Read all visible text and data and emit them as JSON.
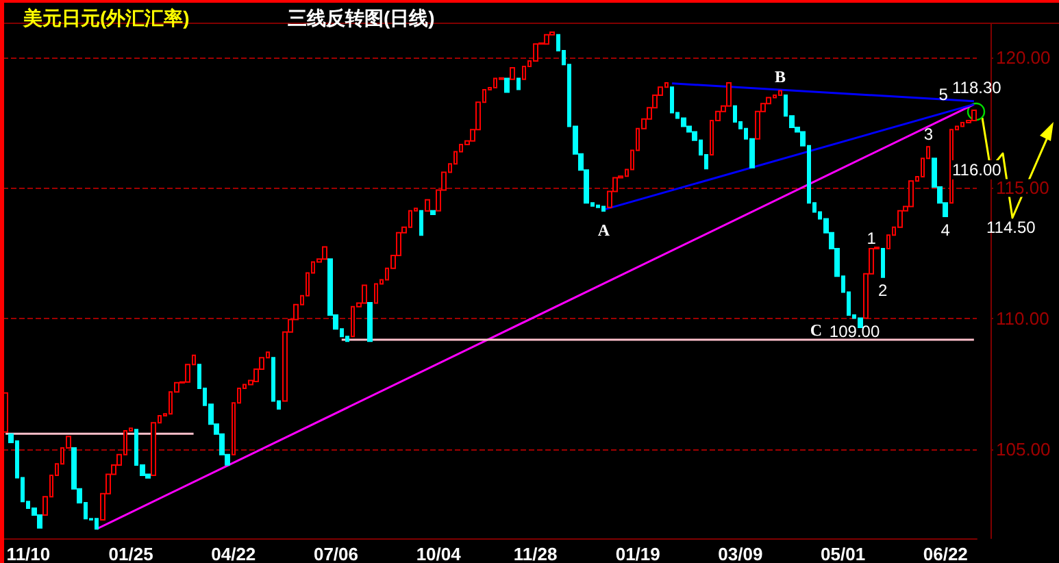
{
  "chart_data": {
    "type": "candlestick",
    "title": "美元日元(外汇汇率)",
    "subtitle": "三线反转图(日线)",
    "categories": [
      null,
      null,
      null,
      null,
      "11/10",
      null,
      null,
      null,
      null,
      null,
      null,
      null,
      null,
      null,
      null,
      null,
      null,
      null,
      null,
      null,
      null,
      null,
      "01/25",
      null,
      null,
      null,
      null,
      null,
      null,
      null,
      null,
      null,
      null,
      null,
      null,
      null,
      null,
      null,
      null,
      null,
      "04/22",
      null,
      null,
      null,
      null,
      null,
      null,
      null,
      null,
      null,
      null,
      null,
      null,
      null,
      null,
      null,
      null,
      null,
      "07/06",
      null,
      null,
      null,
      null,
      null,
      null,
      null,
      null,
      null,
      null,
      null,
      null,
      null,
      null,
      null,
      null,
      null,
      "10/04",
      null,
      null,
      null,
      null,
      null,
      null,
      null,
      null,
      null,
      null,
      null,
      null,
      null,
      null,
      null,
      null,
      "11/28",
      null,
      null,
      null,
      null,
      null,
      null,
      null,
      null,
      null,
      null,
      null,
      null,
      null,
      null,
      null,
      null,
      null,
      "01/19",
      null,
      null,
      null,
      null,
      null,
      null,
      null,
      null,
      null,
      null,
      null,
      null,
      null,
      null,
      null,
      null,
      null,
      "03/09",
      null,
      null,
      null,
      null,
      null,
      null,
      null,
      null,
      null,
      null,
      null,
      null,
      null,
      null,
      null,
      null,
      null,
      "05/01",
      null,
      null,
      null,
      null,
      null,
      null,
      null,
      null,
      null,
      null,
      null,
      null,
      null,
      null,
      null,
      null,
      null,
      "06/22",
      null,
      null,
      null,
      null,
      null
    ],
    "ylim": [
      101.6,
      121.3
    ],
    "yticks": [
      {
        "value": 105,
        "label": "105.00"
      },
      {
        "value": 110,
        "label": "110.00"
      },
      {
        "value": 115,
        "label": "115.00"
      },
      {
        "value": 120,
        "label": "120.00"
      }
    ],
    "grid": "y",
    "annotations": [
      "A",
      "B",
      "C",
      "109.00",
      "1",
      "2",
      "3",
      "4",
      "5",
      "118.30",
      "116.00",
      "114.50"
    ],
    "series": [
      {
        "type": "candlestick",
        "ohlc": [
          [
            105.67,
            107.16,
            105.67,
            107.16
          ],
          [
            105.59,
            105.59,
            105.27,
            105.27
          ],
          [
            105.32,
            105.32,
            103.92,
            103.92
          ],
          [
            103.92,
            103.92,
            103.01,
            103.01
          ],
          [
            103.01,
            103.01,
            102.75,
            102.75
          ],
          [
            102.75,
            102.75,
            102.49,
            102.49
          ],
          [
            102.49,
            102.49,
            102.0,
            102.0
          ],
          [
            102.49,
            103.19,
            102.49,
            103.19
          ],
          [
            103.19,
            104.01,
            103.19,
            104.01
          ],
          [
            104.01,
            104.45,
            104.01,
            104.45
          ],
          [
            104.45,
            105.06,
            104.45,
            105.06
          ],
          [
            105.06,
            105.5,
            105.06,
            105.5
          ],
          [
            105.06,
            105.06,
            103.49,
            103.49
          ],
          [
            103.49,
            103.49,
            102.96,
            102.96
          ],
          [
            102.96,
            102.96,
            102.35,
            102.35
          ],
          [
            102.35,
            102.35,
            102.31,
            102.31
          ],
          [
            102.35,
            102.35,
            101.96,
            101.96
          ],
          [
            102.31,
            103.31,
            102.31,
            103.31
          ],
          [
            103.31,
            104.05,
            103.31,
            104.05
          ],
          [
            104.05,
            104.4,
            104.05,
            104.4
          ],
          [
            104.4,
            104.8,
            104.4,
            104.8
          ],
          [
            104.8,
            105.71,
            104.8,
            105.71
          ],
          [
            105.71,
            105.81,
            105.71,
            105.81
          ],
          [
            105.76,
            105.76,
            104.4,
            104.4
          ],
          [
            104.4,
            104.4,
            104.01,
            104.01
          ],
          [
            104.05,
            104.05,
            103.91,
            103.91
          ],
          [
            104.01,
            106.02,
            104.01,
            106.02
          ],
          [
            106.02,
            106.29,
            106.02,
            106.29
          ],
          [
            106.29,
            106.36,
            106.29,
            106.36
          ],
          [
            106.36,
            107.2,
            106.36,
            107.2
          ],
          [
            107.2,
            107.55,
            107.2,
            107.55
          ],
          [
            107.55,
            107.58,
            107.55,
            107.58
          ],
          [
            107.58,
            108.25,
            107.58,
            108.25
          ],
          [
            108.25,
            108.6,
            108.25,
            108.6
          ],
          [
            108.25,
            108.25,
            107.34,
            107.34
          ],
          [
            107.34,
            107.34,
            106.69,
            106.69
          ],
          [
            106.73,
            106.73,
            105.97,
            105.97
          ],
          [
            105.97,
            105.97,
            105.59,
            105.59
          ],
          [
            105.59,
            105.59,
            104.8,
            104.8
          ],
          [
            104.8,
            104.8,
            104.41,
            104.41
          ],
          [
            104.8,
            106.78,
            104.8,
            106.78
          ],
          [
            106.78,
            107.34,
            106.78,
            107.34
          ],
          [
            107.34,
            107.48,
            107.34,
            107.48
          ],
          [
            107.48,
            107.64,
            107.48,
            107.64
          ],
          [
            107.6,
            108.07,
            107.6,
            108.07
          ],
          [
            108.07,
            108.51,
            108.07,
            108.51
          ],
          [
            108.51,
            108.72,
            108.51,
            108.72
          ],
          [
            108.51,
            108.51,
            106.85,
            106.85
          ],
          [
            106.85,
            106.85,
            106.55,
            106.55
          ],
          [
            106.85,
            109.49,
            106.85,
            109.49
          ],
          [
            109.49,
            109.97,
            109.49,
            109.97
          ],
          [
            109.97,
            110.54,
            109.97,
            110.54
          ],
          [
            110.54,
            110.88,
            110.54,
            110.88
          ],
          [
            110.88,
            111.75,
            110.88,
            111.75
          ],
          [
            111.75,
            112.17,
            111.75,
            112.17
          ],
          [
            112.17,
            112.28,
            112.17,
            112.28
          ],
          [
            112.28,
            112.75,
            112.28,
            112.75
          ],
          [
            112.28,
            112.28,
            110.14,
            110.14
          ],
          [
            110.14,
            110.14,
            109.61,
            109.61
          ],
          [
            109.61,
            109.61,
            109.32,
            109.32
          ],
          [
            109.32,
            109.32,
            109.14,
            109.14
          ],
          [
            109.32,
            110.46,
            109.32,
            110.46
          ],
          [
            110.46,
            110.6,
            110.46,
            110.6
          ],
          [
            110.6,
            111.28,
            110.6,
            111.28
          ],
          [
            110.61,
            110.61,
            109.14,
            109.14
          ],
          [
            110.6,
            111.33,
            110.6,
            111.33
          ],
          [
            111.33,
            111.49,
            111.33,
            111.49
          ],
          [
            111.49,
            111.93,
            111.49,
            111.93
          ],
          [
            111.93,
            112.42,
            111.93,
            112.42
          ],
          [
            112.42,
            113.29,
            112.42,
            113.29
          ],
          [
            113.29,
            113.5,
            113.29,
            113.5
          ],
          [
            113.5,
            114.13,
            113.5,
            114.13
          ],
          [
            114.13,
            114.22,
            114.13,
            114.22
          ],
          [
            114.13,
            114.13,
            113.2,
            113.2
          ],
          [
            114.12,
            114.55,
            114.12,
            114.55
          ],
          [
            114.13,
            114.13,
            113.99,
            113.99
          ],
          [
            114.13,
            114.92,
            114.13,
            114.92
          ],
          [
            114.92,
            115.6,
            114.92,
            115.6
          ],
          [
            115.6,
            115.92,
            115.6,
            115.92
          ],
          [
            115.92,
            116.39,
            115.92,
            116.39
          ],
          [
            116.39,
            116.66,
            116.39,
            116.66
          ],
          [
            116.66,
            116.8,
            116.66,
            116.8
          ],
          [
            116.8,
            117.23,
            116.8,
            117.23
          ],
          [
            117.23,
            118.28,
            117.23,
            118.28
          ],
          [
            118.28,
            118.76,
            118.28,
            118.76
          ],
          [
            118.76,
            118.84,
            118.76,
            118.84
          ],
          [
            118.84,
            119.19,
            118.84,
            119.19
          ],
          [
            119.16,
            119.21,
            119.16,
            119.21
          ],
          [
            119.19,
            119.19,
            118.67,
            118.67
          ],
          [
            119.16,
            119.6,
            119.16,
            119.6
          ],
          [
            119.19,
            119.19,
            118.77,
            118.77
          ],
          [
            119.16,
            119.65,
            119.16,
            119.65
          ],
          [
            119.65,
            119.86,
            119.65,
            119.86
          ],
          [
            119.86,
            120.51,
            119.86,
            120.51
          ],
          [
            120.51,
            120.54,
            120.51,
            120.54
          ],
          [
            120.51,
            120.86,
            120.51,
            120.86
          ],
          [
            120.86,
            120.96,
            120.86,
            120.96
          ],
          [
            120.86,
            120.86,
            120.25,
            120.25
          ],
          [
            120.25,
            120.25,
            119.72,
            119.72
          ],
          [
            119.72,
            119.72,
            117.36,
            117.36
          ],
          [
            117.36,
            117.36,
            116.3,
            116.3
          ],
          [
            116.3,
            116.3,
            115.69,
            115.69
          ],
          [
            115.69,
            115.69,
            114.43,
            114.43
          ],
          [
            114.43,
            114.43,
            114.31,
            114.31
          ],
          [
            114.34,
            114.34,
            114.26,
            114.26
          ],
          [
            114.29,
            114.29,
            114.12,
            114.12
          ],
          [
            114.26,
            114.87,
            114.26,
            114.87
          ],
          [
            114.87,
            115.39,
            114.87,
            115.39
          ],
          [
            115.39,
            115.45,
            115.39,
            115.45
          ],
          [
            115.45,
            115.71,
            115.45,
            115.71
          ],
          [
            115.71,
            116.44,
            115.71,
            116.44
          ],
          [
            116.44,
            117.27,
            116.44,
            117.27
          ],
          [
            117.27,
            117.64,
            117.27,
            117.64
          ],
          [
            117.64,
            118.07,
            117.64,
            118.07
          ],
          [
            118.07,
            118.55,
            118.07,
            118.55
          ],
          [
            118.55,
            118.86,
            118.55,
            118.86
          ],
          [
            118.86,
            119.02,
            118.86,
            119.02
          ],
          [
            118.86,
            118.86,
            117.88,
            117.88
          ],
          [
            117.88,
            117.88,
            117.67,
            117.67
          ],
          [
            117.67,
            117.67,
            117.36,
            117.36
          ],
          [
            117.36,
            117.36,
            117.15,
            117.15
          ],
          [
            117.15,
            117.15,
            116.83,
            116.83
          ],
          [
            116.83,
            116.83,
            116.27,
            116.27
          ],
          [
            116.27,
            116.27,
            115.74,
            115.74
          ],
          [
            116.27,
            117.58,
            116.27,
            117.58
          ],
          [
            117.58,
            117.93,
            117.58,
            117.93
          ],
          [
            117.93,
            118.14,
            117.93,
            118.14
          ],
          [
            118.14,
            119.02,
            118.14,
            119.02
          ],
          [
            118.14,
            118.14,
            117.53,
            117.53
          ],
          [
            117.53,
            117.53,
            117.27,
            117.27
          ],
          [
            117.27,
            117.27,
            116.88,
            116.88
          ],
          [
            116.88,
            116.88,
            115.78,
            115.78
          ],
          [
            116.88,
            117.93,
            116.88,
            117.93
          ],
          [
            117.93,
            118.23,
            117.93,
            118.23
          ],
          [
            118.23,
            118.46,
            118.23,
            118.46
          ],
          [
            118.46,
            118.55,
            118.46,
            118.55
          ],
          [
            118.55,
            118.72,
            118.55,
            118.72
          ],
          [
            118.55,
            118.55,
            117.76,
            117.76
          ],
          [
            117.76,
            117.76,
            117.32,
            117.32
          ],
          [
            117.32,
            117.32,
            117.15,
            117.15
          ],
          [
            117.15,
            117.15,
            116.62,
            116.62
          ],
          [
            116.62,
            116.62,
            114.43,
            114.43
          ],
          [
            114.43,
            114.43,
            114.08,
            114.08
          ],
          [
            114.08,
            114.08,
            113.82,
            113.82
          ],
          [
            113.82,
            113.82,
            113.29,
            113.29
          ],
          [
            113.29,
            113.29,
            112.68,
            112.68
          ],
          [
            112.68,
            112.68,
            111.63,
            111.63
          ],
          [
            111.63,
            111.63,
            111.02,
            111.02
          ],
          [
            111.02,
            111.02,
            110.14,
            110.14
          ],
          [
            110.14,
            110.14,
            110.02,
            110.02
          ],
          [
            110.02,
            110.02,
            109.67,
            109.67
          ],
          [
            110.02,
            111.72,
            110.02,
            111.72
          ],
          [
            111.72,
            112.68,
            111.72,
            112.68
          ],
          [
            112.68,
            112.73,
            112.68,
            112.73
          ],
          [
            112.68,
            112.68,
            111.59,
            111.59
          ],
          [
            112.68,
            113.2,
            112.68,
            113.2
          ],
          [
            113.2,
            113.5,
            113.2,
            113.5
          ],
          [
            113.5,
            114.13,
            113.5,
            114.13
          ],
          [
            114.13,
            114.29,
            114.13,
            114.29
          ],
          [
            114.29,
            115.27,
            114.29,
            115.27
          ],
          [
            115.27,
            115.43,
            115.27,
            115.43
          ],
          [
            115.43,
            116.13,
            115.43,
            116.13
          ],
          [
            116.13,
            116.58,
            116.13,
            116.58
          ],
          [
            116.13,
            116.13,
            115.04,
            115.04
          ],
          [
            115.04,
            115.04,
            114.43,
            114.43
          ],
          [
            114.43,
            114.43,
            113.91,
            113.91
          ],
          [
            114.43,
            117.23,
            114.43,
            117.23
          ],
          [
            117.23,
            117.36,
            117.23,
            117.36
          ],
          [
            117.36,
            117.5,
            117.36,
            117.5
          ],
          [
            117.5,
            117.58,
            117.5,
            117.58
          ],
          [
            117.58,
            117.97,
            117.58,
            117.97
          ]
        ],
        "colors": [
          "#ff0000",
          "#00ffff",
          "#00ffff",
          "#00ffff",
          "#00ffff",
          "#00ffff",
          "#00ffff",
          "#ff0000",
          "#ff0000",
          "#ff0000",
          "#ff0000",
          "#ff0000",
          "#00ffff",
          "#00ffff",
          "#00ffff",
          "#00ffff",
          "#00ffff",
          "#ff0000",
          "#ff0000",
          "#ff0000",
          "#ff0000",
          "#ff0000",
          "#ff0000",
          "#00ffff",
          "#00ffff",
          "#00ffff",
          "#ff0000",
          "#ff0000",
          "#ff0000",
          "#ff0000",
          "#ff0000",
          "#ff0000",
          "#ff0000",
          "#ff0000",
          "#00ffff",
          "#00ffff",
          "#00ffff",
          "#00ffff",
          "#00ffff",
          "#00ffff",
          "#ff0000",
          "#ff0000",
          "#ff0000",
          "#ff0000",
          "#ff0000",
          "#ff0000",
          "#ff0000",
          "#00ffff",
          "#00ffff",
          "#ff0000",
          "#ff0000",
          "#ff0000",
          "#ff0000",
          "#ff0000",
          "#ff0000",
          "#ff0000",
          "#ff0000",
          "#00ffff",
          "#00ffff",
          "#00ffff",
          "#00ffff",
          "#ff0000",
          "#ff0000",
          "#ff0000",
          "#00ffff",
          "#ff0000",
          "#ff0000",
          "#ff0000",
          "#ff0000",
          "#ff0000",
          "#ff0000",
          "#ff0000",
          "#ff0000",
          "#00ffff",
          "#ff0000",
          "#00ffff",
          "#ff0000",
          "#ff0000",
          "#ff0000",
          "#ff0000",
          "#ff0000",
          "#ff0000",
          "#ff0000",
          "#ff0000",
          "#ff0000",
          "#ff0000",
          "#ff0000",
          "#ff0000",
          "#00ffff",
          "#ff0000",
          "#00ffff",
          "#ff0000",
          "#ff0000",
          "#ff0000",
          "#ff0000",
          "#ff0000",
          "#ff0000",
          "#00ffff",
          "#00ffff",
          "#00ffff",
          "#00ffff",
          "#00ffff",
          "#00ffff",
          "#00ffff",
          "#00ffff",
          "#00ffff",
          "#ff0000",
          "#ff0000",
          "#ff0000",
          "#ff0000",
          "#ff0000",
          "#ff0000",
          "#ff0000",
          "#ff0000",
          "#ff0000",
          "#ff0000",
          "#ff0000",
          "#00ffff",
          "#00ffff",
          "#00ffff",
          "#00ffff",
          "#00ffff",
          "#00ffff",
          "#00ffff",
          "#ff0000",
          "#ff0000",
          "#ff0000",
          "#ff0000",
          "#00ffff",
          "#00ffff",
          "#00ffff",
          "#00ffff",
          "#ff0000",
          "#ff0000",
          "#ff0000",
          "#ff0000",
          "#ff0000",
          "#00ffff",
          "#00ffff",
          "#00ffff",
          "#00ffff",
          "#00ffff",
          "#00ffff",
          "#00ffff",
          "#00ffff",
          "#00ffff",
          "#00ffff",
          "#00ffff",
          "#00ffff",
          "#00ffff",
          "#00ffff",
          "#ff0000",
          "#ff0000",
          "#ff0000",
          "#00ffff",
          "#ff0000",
          "#ff0000",
          "#ff0000",
          "#ff0000",
          "#ff0000",
          "#ff0000",
          "#ff0000",
          "#ff0000",
          "#00ffff",
          "#00ffff",
          "#00ffff",
          "#ff0000",
          "#ff0000",
          "#ff0000",
          "#ff0000",
          "#ff0000"
        ]
      },
      {
        "type": "line",
        "color": "#ff00ff",
        "values": [
          null,
          null,
          null,
          null,
          null,
          null,
          null,
          null,
          null,
          null,
          null,
          null,
          null,
          null,
          null,
          null,
          101.96,
          null,
          null,
          null,
          null,
          null,
          null,
          null,
          null,
          null,
          null,
          null,
          null,
          null,
          null,
          null,
          null,
          null,
          null,
          null,
          null,
          null,
          null,
          null,
          null,
          null,
          null,
          null,
          null,
          null,
          null,
          null,
          null,
          null,
          null,
          null,
          null,
          null,
          null,
          null,
          null,
          null,
          null,
          null,
          null,
          null,
          null,
          null,
          null,
          null,
          null,
          null,
          null,
          null,
          null,
          null,
          null,
          null,
          null,
          null,
          null,
          null,
          null,
          null,
          null,
          null,
          null,
          null,
          null,
          null,
          null,
          null,
          null,
          null,
          null,
          null,
          null,
          null,
          null,
          null,
          null,
          null,
          null,
          null,
          null,
          null,
          null,
          null,
          null,
          null,
          null,
          null,
          null,
          null,
          null,
          null,
          null,
          null,
          null,
          null,
          null,
          null,
          null,
          null,
          null,
          null,
          null,
          null,
          null,
          null,
          null,
          null,
          null,
          null,
          null,
          null,
          null,
          null,
          null,
          null,
          null,
          null,
          null,
          null,
          null,
          null,
          null,
          null,
          null,
          null,
          null,
          null,
          null,
          null,
          null,
          null,
          null,
          null,
          null,
          null,
          null,
          null,
          null,
          null,
          null,
          null,
          null,
          null,
          null,
          null,
          null,
          null,
          null,
          null,
          118.2
        ]
      },
      {
        "type": "line",
        "color": "#0000ff",
        "values": [
          null,
          null,
          null,
          null,
          null,
          null,
          null,
          null,
          null,
          null,
          null,
          null,
          null,
          null,
          null,
          null,
          null,
          null,
          null,
          null,
          null,
          null,
          null,
          null,
          null,
          null,
          null,
          null,
          null,
          null,
          null,
          null,
          null,
          null,
          null,
          null,
          null,
          null,
          null,
          null,
          null,
          null,
          null,
          null,
          null,
          null,
          null,
          null,
          null,
          null,
          null,
          null,
          null,
          null,
          null,
          null,
          null,
          null,
          null,
          null,
          null,
          null,
          null,
          null,
          null,
          null,
          null,
          null,
          null,
          null,
          null,
          null,
          null,
          null,
          null,
          null,
          null,
          null,
          null,
          null,
          null,
          null,
          null,
          null,
          null,
          null,
          null,
          null,
          null,
          null,
          null,
          null,
          null,
          null,
          null,
          null,
          null,
          null,
          null,
          null,
          null,
          null,
          null,
          null,
          null,
          114.17,
          null,
          null,
          null,
          null,
          null,
          null,
          null,
          null,
          null,
          null,
          null,
          null,
          null,
          null,
          null,
          null,
          null,
          null,
          null,
          null,
          null,
          null,
          null,
          null,
          null,
          null,
          null,
          null,
          null,
          null,
          null,
          null,
          null,
          null,
          null,
          null,
          null,
          null,
          null,
          null,
          null,
          null,
          null,
          null,
          null,
          null,
          null,
          null,
          null,
          null,
          null,
          null,
          null,
          null,
          null,
          null,
          null,
          null,
          null,
          null,
          null,
          null,
          null,
          null,
          118.2
        ]
      },
      {
        "type": "line",
        "color": "#0000ff",
        "values": [
          null,
          null,
          null,
          null,
          null,
          null,
          null,
          null,
          null,
          null,
          null,
          null,
          null,
          null,
          null,
          null,
          null,
          null,
          null,
          null,
          null,
          null,
          null,
          null,
          null,
          null,
          null,
          null,
          null,
          null,
          null,
          null,
          null,
          null,
          null,
          null,
          null,
          null,
          null,
          null,
          null,
          null,
          null,
          null,
          null,
          null,
          null,
          null,
          null,
          null,
          null,
          null,
          null,
          null,
          null,
          null,
          null,
          null,
          null,
          null,
          null,
          null,
          null,
          null,
          null,
          null,
          null,
          null,
          null,
          null,
          null,
          null,
          null,
          null,
          null,
          null,
          null,
          null,
          null,
          null,
          null,
          null,
          null,
          null,
          null,
          null,
          null,
          null,
          null,
          null,
          null,
          null,
          null,
          null,
          null,
          null,
          null,
          null,
          null,
          null,
          null,
          null,
          null,
          null,
          null,
          null,
          null,
          null,
          null,
          null,
          null,
          null,
          null,
          null,
          null,
          null,
          null,
          119.0,
          null,
          null,
          null,
          null,
          null,
          null,
          null,
          null,
          null,
          null,
          null,
          null,
          null,
          null,
          null,
          null,
          null,
          null,
          null,
          null,
          null,
          null,
          null,
          null,
          null,
          null,
          null,
          null,
          null,
          null,
          null,
          null,
          null,
          null,
          null,
          null,
          null,
          null,
          null,
          null,
          null,
          null,
          null,
          null,
          null,
          null,
          null,
          null,
          null,
          null,
          null,
          null,
          118.32
        ]
      },
      {
        "type": "line",
        "color": "#ffc0cb",
        "values": [
          105.6,
          null,
          null,
          null,
          null,
          null,
          null,
          null,
          null,
          null,
          null,
          null,
          null,
          null,
          null,
          null,
          null,
          null,
          null,
          null,
          null,
          null,
          null,
          null,
          null,
          null,
          null,
          null,
          null,
          null,
          null,
          null,
          null,
          105.6,
          null,
          null,
          null,
          null,
          null,
          null,
          null,
          null,
          null,
          null,
          null,
          null,
          null,
          null,
          null,
          null,
          null,
          null,
          null,
          null,
          null,
          null,
          null,
          null,
          null,
          null,
          null,
          null,
          null,
          null,
          null,
          null,
          null,
          null,
          null,
          null,
          null,
          null,
          null,
          null,
          null,
          null,
          null,
          null,
          null,
          null,
          null,
          null,
          null,
          null,
          null,
          null,
          null,
          null,
          null,
          null,
          null,
          null,
          null,
          null,
          null,
          null,
          null,
          null,
          null,
          null,
          null,
          null,
          null,
          null,
          null,
          null,
          null,
          null,
          null,
          null,
          null,
          null,
          null,
          null,
          null,
          null,
          null,
          null,
          null,
          null,
          null,
          null,
          null,
          null,
          null,
          null,
          null,
          null,
          null,
          null,
          null,
          null,
          null,
          null,
          null,
          null,
          null,
          null,
          null,
          null,
          null,
          null,
          null,
          null,
          null,
          null,
          null,
          null,
          null,
          null,
          null,
          null,
          null,
          null,
          null,
          null,
          null,
          null,
          null,
          null,
          null,
          null,
          null,
          null,
          null,
          null,
          null,
          null,
          null,
          null,
          null
        ]
      },
      {
        "type": "line",
        "color": "#ffc0cb",
        "values": [
          null,
          null,
          null,
          null,
          null,
          null,
          null,
          null,
          null,
          null,
          null,
          null,
          null,
          null,
          null,
          null,
          null,
          null,
          null,
          null,
          null,
          null,
          null,
          null,
          null,
          null,
          null,
          null,
          null,
          null,
          null,
          null,
          null,
          null,
          null,
          null,
          null,
          null,
          null,
          null,
          null,
          null,
          null,
          null,
          null,
          null,
          null,
          null,
          null,
          null,
          null,
          null,
          null,
          null,
          null,
          null,
          null,
          null,
          null,
          109.2,
          null,
          null,
          null,
          null,
          null,
          null,
          null,
          null,
          null,
          null,
          null,
          null,
          null,
          null,
          null,
          null,
          null,
          null,
          null,
          null,
          null,
          null,
          null,
          null,
          null,
          null,
          null,
          null,
          null,
          null,
          null,
          null,
          null,
          null,
          null,
          null,
          null,
          null,
          null,
          null,
          null,
          null,
          null,
          null,
          null,
          null,
          null,
          null,
          null,
          null,
          null,
          null,
          null,
          null,
          null,
          null,
          null,
          null,
          null,
          null,
          null,
          null,
          null,
          null,
          null,
          null,
          null,
          null,
          null,
          null,
          null,
          null,
          null,
          null,
          null,
          null,
          null,
          null,
          null,
          null,
          null,
          null,
          null,
          null,
          null,
          null,
          null,
          null,
          null,
          null,
          null,
          null,
          null,
          null,
          null,
          null,
          null,
          null,
          null,
          null,
          null,
          null,
          null,
          null,
          null,
          null,
          null,
          null,
          null,
          null,
          109.2
        ]
      }
    ]
  }
}
